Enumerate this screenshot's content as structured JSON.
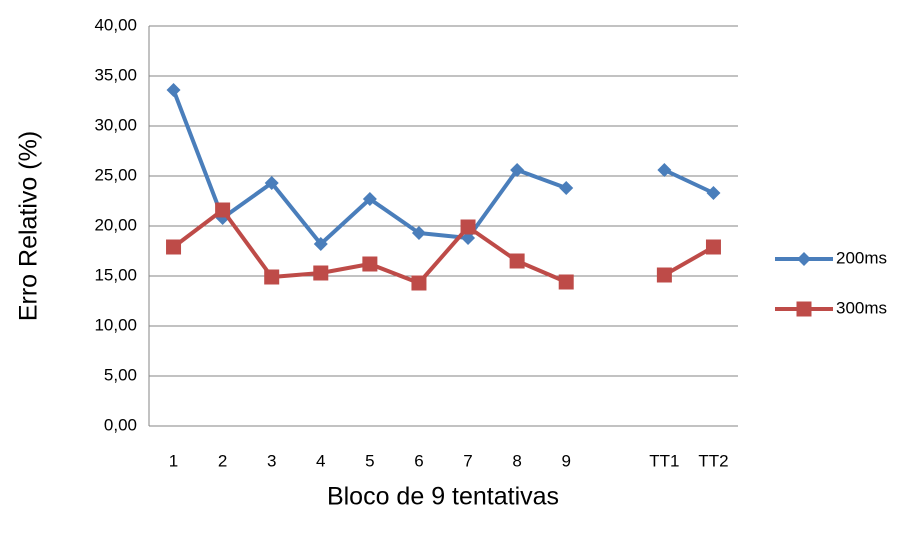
{
  "chart_data": {
    "type": "line",
    "x_label": "Bloco de 9 tentativas",
    "y_label": "Erro Relativo (%)",
    "categories": [
      "1",
      "2",
      "3",
      "4",
      "5",
      "6",
      "7",
      "8",
      "9",
      null,
      "TT1",
      "TT2"
    ],
    "series": [
      {
        "name": "200ms",
        "color": "#4a7ebb",
        "marker": "diamond",
        "values": [
          33.6,
          20.8,
          24.3,
          18.2,
          22.7,
          19.3,
          18.8,
          25.6,
          23.8,
          null,
          25.6,
          23.3
        ]
      },
      {
        "name": "300ms",
        "color": "#be4b48",
        "marker": "square",
        "values": [
          17.9,
          21.6,
          14.9,
          15.3,
          16.2,
          14.3,
          19.9,
          16.5,
          14.4,
          null,
          15.1,
          17.9
        ]
      }
    ],
    "ylim": [
      0,
      40
    ],
    "yticks": [
      {
        "value": 0,
        "label": "0,00"
      },
      {
        "value": 5,
        "label": "5,00"
      },
      {
        "value": 10,
        "label": "10,00"
      },
      {
        "value": 15,
        "label": "15,00"
      },
      {
        "value": 20,
        "label": "20,00"
      },
      {
        "value": 25,
        "label": "25,00"
      },
      {
        "value": 30,
        "label": "30,00"
      },
      {
        "value": 35,
        "label": "35,00"
      },
      {
        "value": 40,
        "label": "40,00"
      }
    ],
    "grid": true,
    "legend": "right"
  }
}
